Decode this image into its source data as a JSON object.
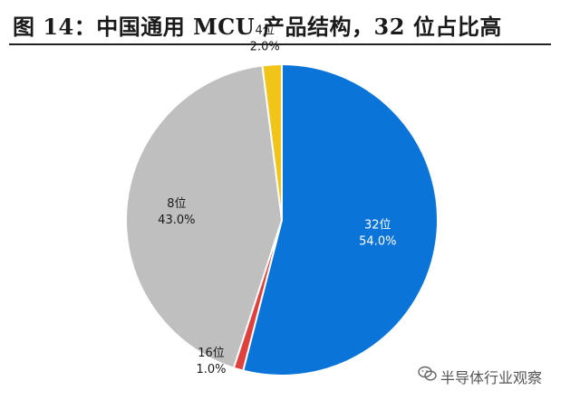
{
  "title": "图 14：中国通用 MCU 产品结构，32 位占比高",
  "chart_data": {
    "type": "pie",
    "start_angle_deg": 0,
    "direction": "clockwise",
    "slices": [
      {
        "label": "32位",
        "value": 54.0,
        "pct_label": "54.0%",
        "color": "#0b74d8",
        "label_color": "#ffffff"
      },
      {
        "label": "16位",
        "value": 1.0,
        "pct_label": "1.0%",
        "color": "#e0413d",
        "label_color": "#1a1a1a"
      },
      {
        "label": "8位",
        "value": 43.0,
        "pct_label": "43.0%",
        "color": "#bfbfbf",
        "label_color": "#1a1a1a"
      },
      {
        "label": "4位",
        "value": 2.0,
        "pct_label": "2.0%",
        "color": "#f0c419",
        "label_color": "#1a1a1a"
      }
    ]
  },
  "watermark": {
    "text": "半导体行业观察",
    "icon": "wechat-icon"
  }
}
